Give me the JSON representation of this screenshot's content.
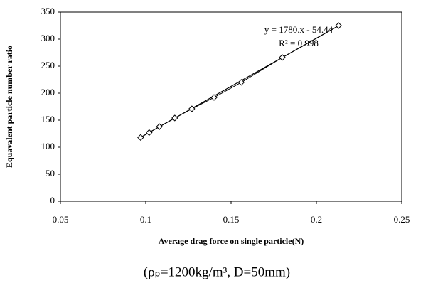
{
  "chart_data": {
    "type": "line",
    "xlabel": "Average drag force on single particle(N)",
    "ylabel": "Equavalent particle number ratio",
    "caption": "(ρₚ=1200kg/m³, D=50mm)",
    "x": [
      0.097,
      0.102,
      0.108,
      0.117,
      0.127,
      0.14,
      0.156,
      0.18,
      0.213
    ],
    "series": [
      {
        "color": "#000000",
        "values": [
          118,
          127,
          138,
          154,
          171,
          192,
          220,
          266,
          325
        ]
      }
    ],
    "trendline": {
      "slope": 1780,
      "intercept": -54.44,
      "equation": "y = 1780.x - 54.44",
      "r2": "R² = 0.998"
    },
    "xlim": [
      0.05,
      0.25
    ],
    "xticks": [
      0.05,
      0.1,
      0.15,
      0.2,
      0.25
    ],
    "ylim": [
      0,
      350
    ],
    "yticks": [
      0,
      50,
      100,
      150,
      200,
      250,
      300,
      350
    ]
  }
}
